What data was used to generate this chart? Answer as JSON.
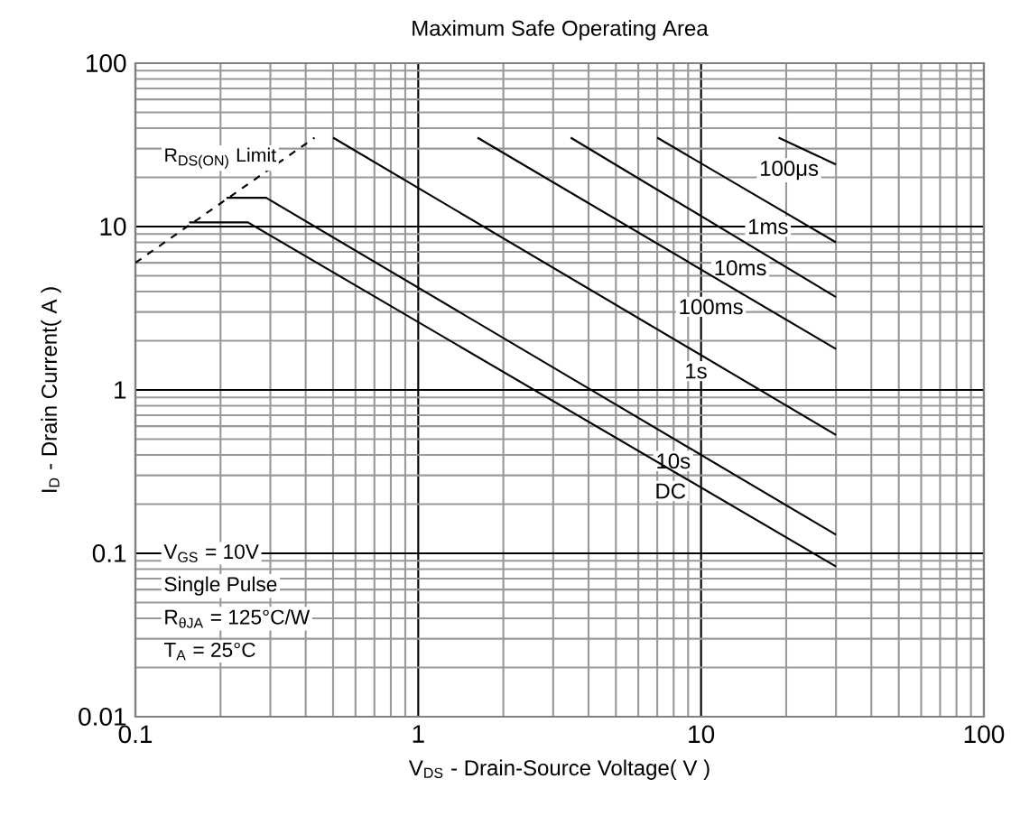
{
  "chart_data": {
    "type": "line",
    "title": "Maximum Safe Operating Area",
    "xlabel": "V$_{DS}$ - Drain-Source Voltage( V )",
    "ylabel": "I$_{D}$ - Drain Current( A )",
    "log": "xy",
    "grid": true,
    "xlim": [
      0.1,
      100
    ],
    "ylim": [
      0.01,
      100
    ],
    "xticks": [
      0.1,
      1,
      10,
      100
    ],
    "yticks": [
      0.01,
      0.1,
      1,
      10,
      100
    ],
    "series": [
      {
        "name": "R$_{DS(ON)}$ Limit",
        "color": "#000000",
        "line_style": "dashed",
        "x": [
          0.1,
          0.43
        ],
        "values": [
          6,
          35
        ]
      },
      {
        "name": "100μs",
        "color": "#000000",
        "x": [
          18.8,
          30
        ],
        "values": [
          35,
          24
        ]
      },
      {
        "name": "1ms",
        "color": "#000000",
        "x": [
          7.0,
          30
        ],
        "values": [
          35,
          8
        ]
      },
      {
        "name": "10ms",
        "color": "#000000",
        "x": [
          3.46,
          30
        ],
        "values": [
          35,
          3.7
        ]
      },
      {
        "name": "100ms",
        "color": "#000000",
        "x": [
          1.62,
          30
        ],
        "values": [
          35,
          1.78
        ]
      },
      {
        "name": "1s",
        "color": "#000000",
        "x": [
          0.5,
          30
        ],
        "values": [
          35,
          0.53
        ]
      },
      {
        "name": "10s",
        "color": "#000000",
        "x": [
          0.21,
          0.29,
          30
        ],
        "values": [
          15,
          15,
          0.13
        ]
      },
      {
        "name": "DC",
        "color": "#000000",
        "x": [
          0.155,
          0.25,
          30
        ],
        "values": [
          10.6,
          10.6,
          0.083
        ]
      }
    ],
    "annotations": [
      "V$_{GS}$ = 10V",
      "Single Pulse",
      "R$_{θJA}$ = 125°C/W",
      "T$_{A}$ = 25°C"
    ]
  }
}
